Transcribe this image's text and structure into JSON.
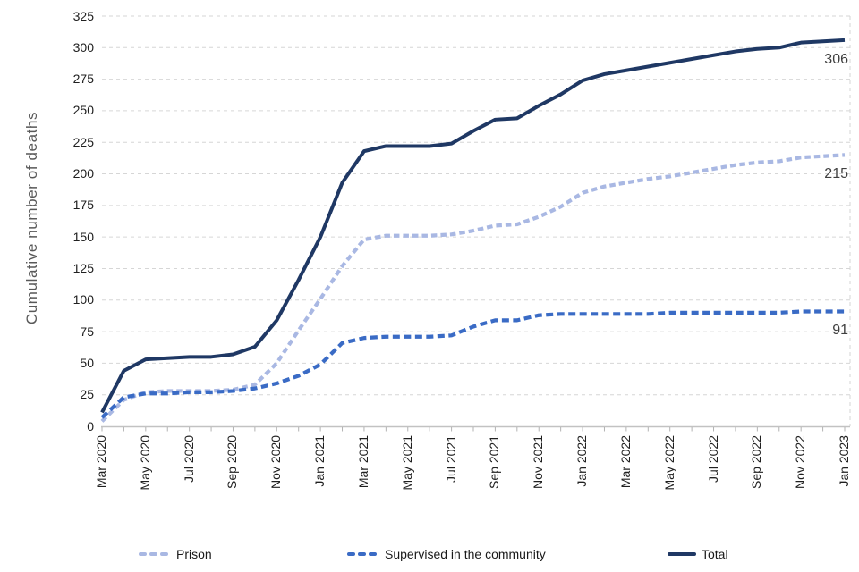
{
  "chart_data": {
    "type": "line",
    "title": "",
    "ylabel": "Cumulative number of deaths",
    "xlabel": "",
    "ylim": [
      0,
      325
    ],
    "ytick_step": 25,
    "yticks": [
      0,
      25,
      50,
      75,
      100,
      125,
      150,
      175,
      200,
      225,
      250,
      275,
      300,
      325
    ],
    "x": [
      "Mar 2020",
      "Apr 2020",
      "May 2020",
      "Jun 2020",
      "Jul 2020",
      "Aug 2020",
      "Sep 2020",
      "Oct 2020",
      "Nov 2020",
      "Dec 2020",
      "Jan 2021",
      "Feb 2021",
      "Mar 2021",
      "Apr 2021",
      "May 2021",
      "Jun 2021",
      "Jul 2021",
      "Aug 2021",
      "Sep 2021",
      "Oct 2021",
      "Nov 2021",
      "Dec 2021",
      "Jan 2022",
      "Feb 2022",
      "Mar 2022",
      "Apr 2022",
      "May 2022",
      "Jun 2022",
      "Jul 2022",
      "Aug 2022",
      "Sep 2022",
      "Oct 2022",
      "Nov 2022",
      "Dec 2022",
      "Jan 2023"
    ],
    "xticklabels": [
      "Mar 2020",
      "May 2020",
      "Jul 2020",
      "Sep 2020",
      "Nov 2020",
      "Jan 2021",
      "Mar 2021",
      "May 2021",
      "Jul 2021",
      "Sep 2021",
      "Nov 2021",
      "Jan 2022",
      "Mar 2022",
      "May 2022",
      "Jul 2022",
      "Sep 2022",
      "Nov 2022",
      "Jan 2023"
    ],
    "grid": "horizontal-dashed",
    "legend_position": "bottom",
    "series": [
      {
        "name": "Prison",
        "line_style": "dashed",
        "color": "#a9b8e3",
        "values": [
          4,
          21,
          27,
          28,
          28,
          28,
          29,
          33,
          50,
          76,
          101,
          127,
          148,
          151,
          151,
          151,
          152,
          155,
          159,
          160,
          166,
          174,
          185,
          190,
          193,
          196,
          198,
          201,
          204,
          207,
          209,
          210,
          213,
          214,
          215
        ]
      },
      {
        "name": "Supervised in the community",
        "line_style": "dashed",
        "color": "#3a6bc5",
        "values": [
          7,
          23,
          26,
          26,
          27,
          27,
          28,
          30,
          34,
          40,
          49,
          66,
          70,
          71,
          71,
          71,
          72,
          79,
          84,
          84,
          88,
          89,
          89,
          89,
          89,
          89,
          90,
          90,
          90,
          90,
          90,
          90,
          91,
          91,
          91
        ]
      },
      {
        "name": "Total",
        "line_style": "solid",
        "color": "#1f3864",
        "values": [
          11,
          44,
          53,
          54,
          55,
          55,
          57,
          63,
          84,
          116,
          150,
          193,
          218,
          222,
          222,
          222,
          224,
          234,
          243,
          244,
          254,
          263,
          274,
          279,
          282,
          285,
          288,
          291,
          294,
          297,
          299,
          300,
          304,
          305,
          306
        ]
      }
    ],
    "end_labels": [
      {
        "series": "Total",
        "text": "306"
      },
      {
        "series": "Prison",
        "text": "215"
      },
      {
        "series": "Supervised in the community",
        "text": "91"
      }
    ],
    "colors": {
      "gridline": "#d6d6d6",
      "axis_line": "#c2c2c2",
      "tick_mark": "#b3b3b3",
      "y_title": "#595959",
      "end_label": "#404040",
      "tick_label": "#202020"
    }
  }
}
